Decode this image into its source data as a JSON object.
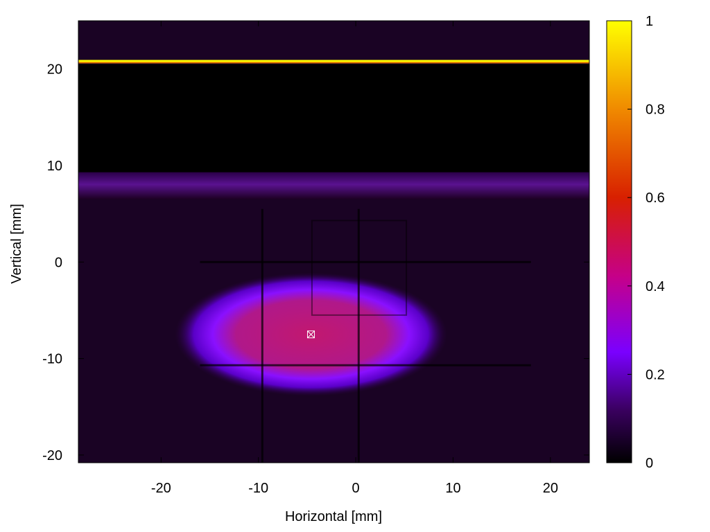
{
  "chart_data": {
    "type": "heatmap",
    "title": "",
    "xlabel": "Horizontal [mm]",
    "ylabel": "Vertical [mm]",
    "xlim": [
      -28.5,
      24
    ],
    "ylim": [
      -20.8,
      25
    ],
    "xticks": [
      -20,
      -10,
      0,
      10,
      20
    ],
    "yticks": [
      -20,
      -10,
      0,
      10,
      20
    ],
    "colorbar": {
      "range": [
        0,
        1
      ],
      "ticks": [
        0,
        0.2,
        0.4,
        0.6,
        0.8,
        1
      ],
      "palette": [
        "#000000",
        "#3a0060",
        "#7a00ff",
        "#c5008a",
        "#d82000",
        "#f08a00",
        "#ffff00"
      ]
    },
    "features": {
      "bright_stripe": {
        "y": 20.8,
        "value": 1.0
      },
      "dark_band": {
        "y_range": [
          9.3,
          20.5
        ],
        "value": 0.0
      },
      "glow_band": {
        "y_range": [
          6.5,
          9.3
        ],
        "value": 0.16
      },
      "beam_spot": {
        "center": [
          -4.6,
          -7.5
        ],
        "radius_x": 14,
        "radius_y": 6.4,
        "peak_value": 0.47
      },
      "marker": {
        "x": -4.6,
        "y": -7.5
      },
      "shadow_lines_vertical": [
        -9.6,
        0.3
      ],
      "shadow_lines_horizontal": [
        -10.7,
        0
      ]
    }
  }
}
